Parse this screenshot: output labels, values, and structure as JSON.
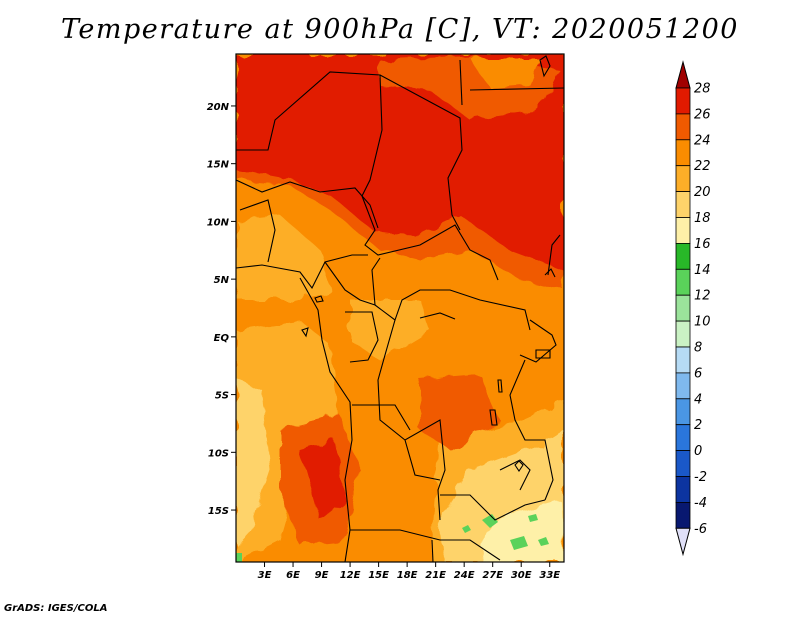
{
  "title": "Temperature at 900hPa [C], VT: 2020051200",
  "credit": "GrADS: IGES/COLA",
  "map": {
    "lat_labels": [
      "20N",
      "15N",
      "10N",
      "5N",
      "EQ",
      "5S",
      "10S",
      "15S"
    ],
    "lon_labels": [
      "3E",
      "6E",
      "9E",
      "12E",
      "15E",
      "18E",
      "21E",
      "24E",
      "27E",
      "30E",
      "33E"
    ],
    "lat_range": [
      -19.5,
      24.5
    ],
    "lon_range": [
      0,
      34.5
    ]
  },
  "colorbar": {
    "labels": [
      "28",
      "26",
      "24",
      "22",
      "20",
      "18",
      "16",
      "14",
      "12",
      "10",
      "8",
      "6",
      "4",
      "2",
      "0",
      "-2",
      "-4",
      "-6"
    ],
    "colors": [
      "#a00000",
      "#e11a00",
      "#f05a00",
      "#fa8c00",
      "#fdae28",
      "#fed36a",
      "#fef0a8",
      "#28b828",
      "#5ad25a",
      "#9be39b",
      "#caf2c4",
      "#b6dbf5",
      "#7fb9ee",
      "#4a96e4",
      "#2a76dc",
      "#1a58c8",
      "#0c34a0",
      "#081870",
      "#e0e0f8"
    ]
  }
}
